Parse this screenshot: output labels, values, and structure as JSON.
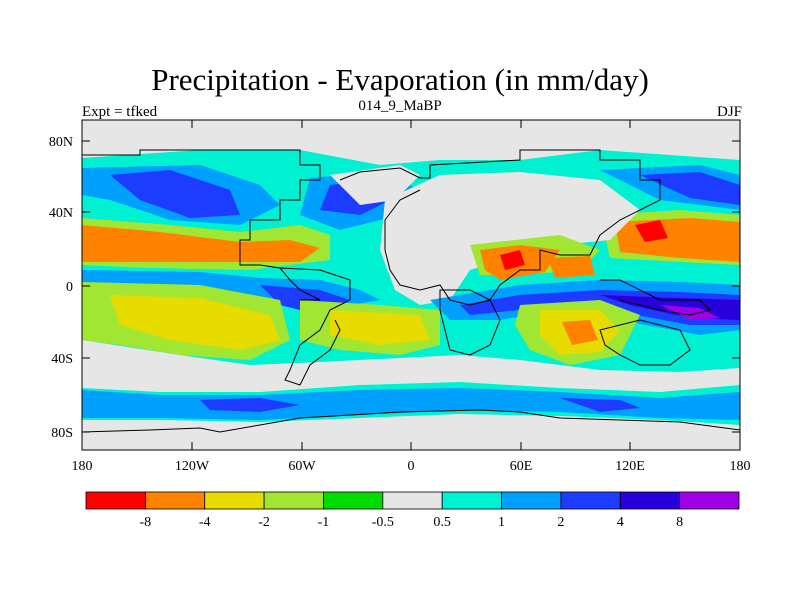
{
  "header": {
    "title": "Precipitation - Evaporation (in mm/day)",
    "subtitle": "014_9_MaBP",
    "left_label": "Expt = tfked",
    "right_label": "DJF"
  },
  "map": {
    "lat_ticks": [
      "80N",
      "40N",
      "0",
      "40S",
      "80S"
    ],
    "lon_ticks": [
      "180",
      "120W",
      "60W",
      "0",
      "60E",
      "120E",
      "180"
    ]
  },
  "legend": {
    "colors": [
      "#ff0000",
      "#ff8200",
      "#e6dc00",
      "#a0e632",
      "#00dc00",
      "#e6e6e6",
      "#00f0d2",
      "#00a0ff",
      "#1e3cff",
      "#2800dc",
      "#a000e6"
    ],
    "labels": [
      "-8",
      "-4",
      "-2",
      "-1",
      "-0.5",
      "0.5",
      "1",
      "2",
      "4",
      "8"
    ]
  }
}
